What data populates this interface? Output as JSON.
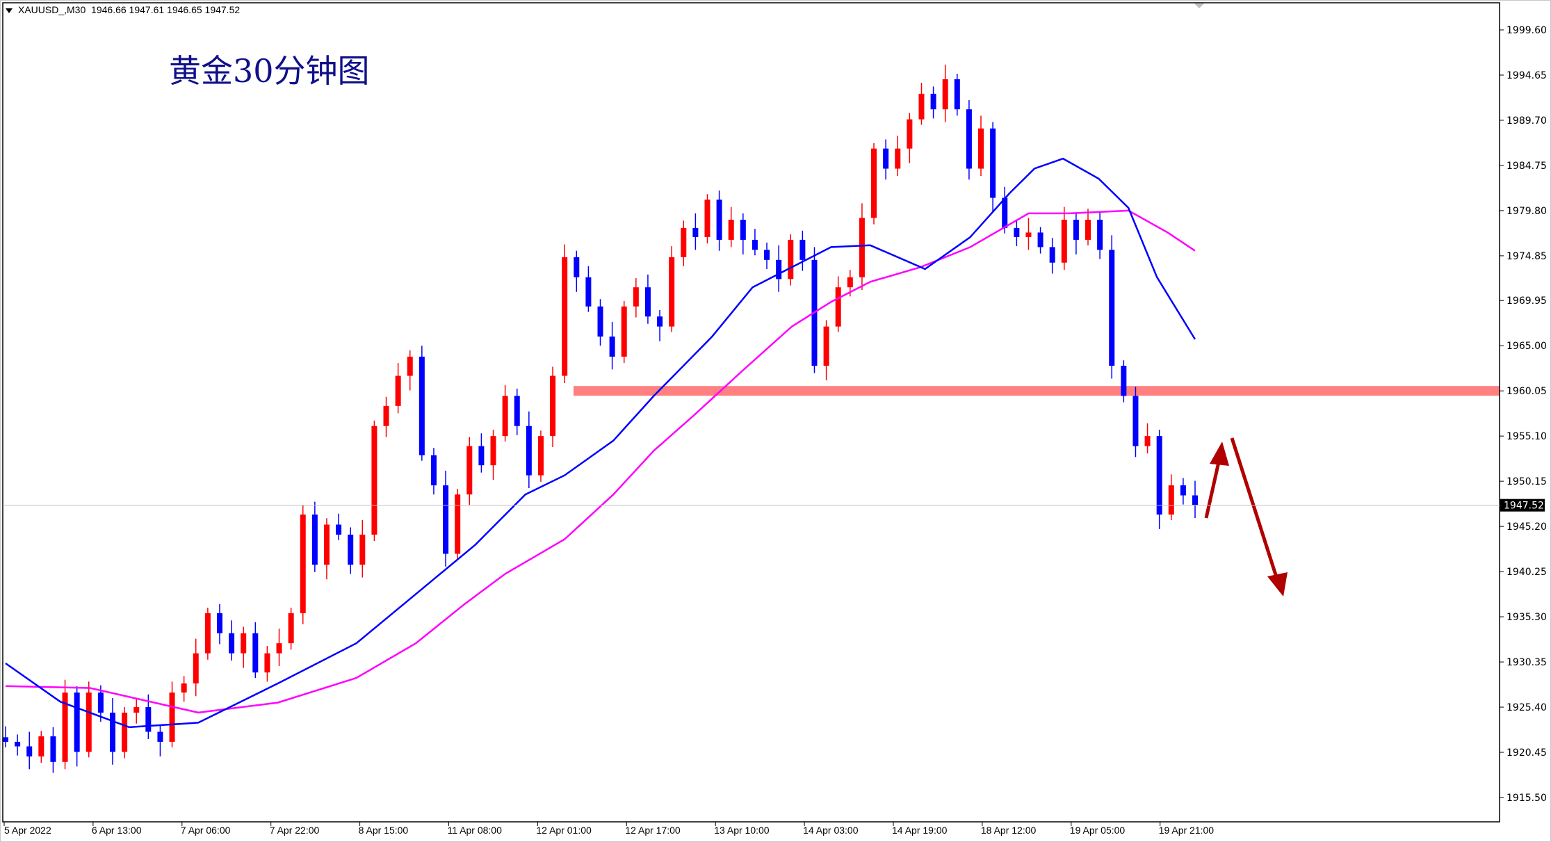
{
  "header": {
    "symbol": "XAUUSD_,M30",
    "ohlc": "1946.66 1947.61 1946.65 1947.52"
  },
  "chart_data": {
    "type": "candlestick",
    "title": "黄金30分钟图",
    "symbol": "XAUUSD_",
    "timeframe": "M30",
    "ylim": [
      1913.5,
      2001.5
    ],
    "y_ticks": [
      "1999.60",
      "1994.65",
      "1989.70",
      "1984.75",
      "1979.80",
      "1974.85",
      "1969.95",
      "1965.00",
      "1960.05",
      "1955.10",
      "1950.15",
      "1945.20",
      "1940.25",
      "1935.30",
      "1930.35",
      "1925.40",
      "1920.45",
      "1915.50"
    ],
    "x_ticks": [
      "5 Apr 2022",
      "6 Apr 13:00",
      "7 Apr 06:00",
      "7 Apr 22:00",
      "8 Apr 15:00",
      "11 Apr 08:00",
      "12 Apr 01:00",
      "12 Apr 17:00",
      "13 Apr 10:00",
      "14 Apr 03:00",
      "14 Apr 19:00",
      "18 Apr 12:00",
      "19 Apr 05:00",
      "19 Apr 21:00"
    ],
    "closes": [
      1921.6,
      1921.1,
      1920,
      1922.2,
      1919.4,
      1927,
      1920.5,
      1927,
      1924.8,
      1920.5,
      1924.8,
      1925.4,
      1922.7,
      1921.6,
      1927,
      1928,
      1931.3,
      1935.7,
      1933.5,
      1931.3,
      1933.5,
      1929.2,
      1931.3,
      1932.4,
      1935.7,
      1946.5,
      1941,
      1945.4,
      1944.3,
      1941,
      1944.3,
      1956.2,
      1958.4,
      1961.7,
      1963.8,
      1953,
      1949.7,
      1942.2,
      1948.7,
      1954,
      1951.9,
      1955.1,
      1959.5,
      1956.2,
      1950.8,
      1955.1,
      1961.7,
      1974.7,
      1972.5,
      1969.3,
      1966,
      1963.8,
      1969.3,
      1971.4,
      1968.2,
      1967.1,
      1974.7,
      1977.9,
      1976.9,
      1981,
      1976.6,
      1978.8,
      1976.6,
      1975.5,
      1974.4,
      1972.3,
      1976.6,
      1974.4,
      1962.8,
      1967.1,
      1971.4,
      1972.5,
      1979,
      1986.6,
      1984.4,
      1986.6,
      1989.8,
      1992.6,
      1990.9,
      1994.2,
      1990.9,
      1984.4,
      1988.8,
      1981.2,
      1977.9,
      1976.9,
      1977.4,
      1975.8,
      1974.1,
      1978.8,
      1976.6,
      1978.8,
      1975.5,
      1962.8,
      1959.5,
      1954,
      1955.1,
      1946.5,
      1949.7,
      1948.6,
      1947.52
    ],
    "ma_fast": [
      [
        0,
        1930.2
      ],
      [
        4.6,
        1926
      ],
      [
        10.4,
        1923.2
      ],
      [
        16.2,
        1923.7
      ],
      [
        22.9,
        1928
      ],
      [
        29.5,
        1932.4
      ],
      [
        34.5,
        1937.8
      ],
      [
        39.5,
        1943.2
      ],
      [
        43.7,
        1948.7
      ],
      [
        47,
        1950.8
      ],
      [
        51.1,
        1954.6
      ],
      [
        54.5,
        1959.5
      ],
      [
        59.4,
        1966
      ],
      [
        62.8,
        1971.4
      ],
      [
        66.1,
        1973.6
      ],
      [
        69.4,
        1975.8
      ],
      [
        72.7,
        1976
      ],
      [
        77.3,
        1973.4
      ],
      [
        81.1,
        1976.9
      ],
      [
        84.4,
        1981.7
      ],
      [
        86.5,
        1984.4
      ],
      [
        88.9,
        1985.5
      ],
      [
        91.9,
        1983.3
      ],
      [
        94.4,
        1980.1
      ],
      [
        96.8,
        1972.5
      ],
      [
        100,
        1965.7
      ]
    ],
    "ma_slow": [
      [
        0,
        1927.7
      ],
      [
        7.1,
        1927.5
      ],
      [
        16.2,
        1924.8
      ],
      [
        22.9,
        1925.9
      ],
      [
        29.5,
        1928.6
      ],
      [
        34.5,
        1932.4
      ],
      [
        38.6,
        1936.7
      ],
      [
        42,
        1940
      ],
      [
        47,
        1943.8
      ],
      [
        51.1,
        1948.7
      ],
      [
        54.5,
        1953.5
      ],
      [
        57.8,
        1957.3
      ],
      [
        61.9,
        1962.2
      ],
      [
        66.1,
        1967.1
      ],
      [
        69.4,
        1969.8
      ],
      [
        72.7,
        1972
      ],
      [
        76.9,
        1973.6
      ],
      [
        81.1,
        1975.8
      ],
      [
        86,
        1979.5
      ],
      [
        89.4,
        1979.5
      ],
      [
        94.4,
        1979.8
      ],
      [
        97.7,
        1977.4
      ],
      [
        100,
        1975.4
      ]
    ],
    "resistance_level": 1960.05,
    "current_price": "1947.52",
    "colors": {
      "bull": "#ff0000",
      "bear": "#0000ff",
      "ma_fast": "#0000ff",
      "ma_slow": "#ff00ff",
      "zone": "#ff8080",
      "arrow": "#b00000",
      "title": "#10108a"
    },
    "grid": false
  }
}
